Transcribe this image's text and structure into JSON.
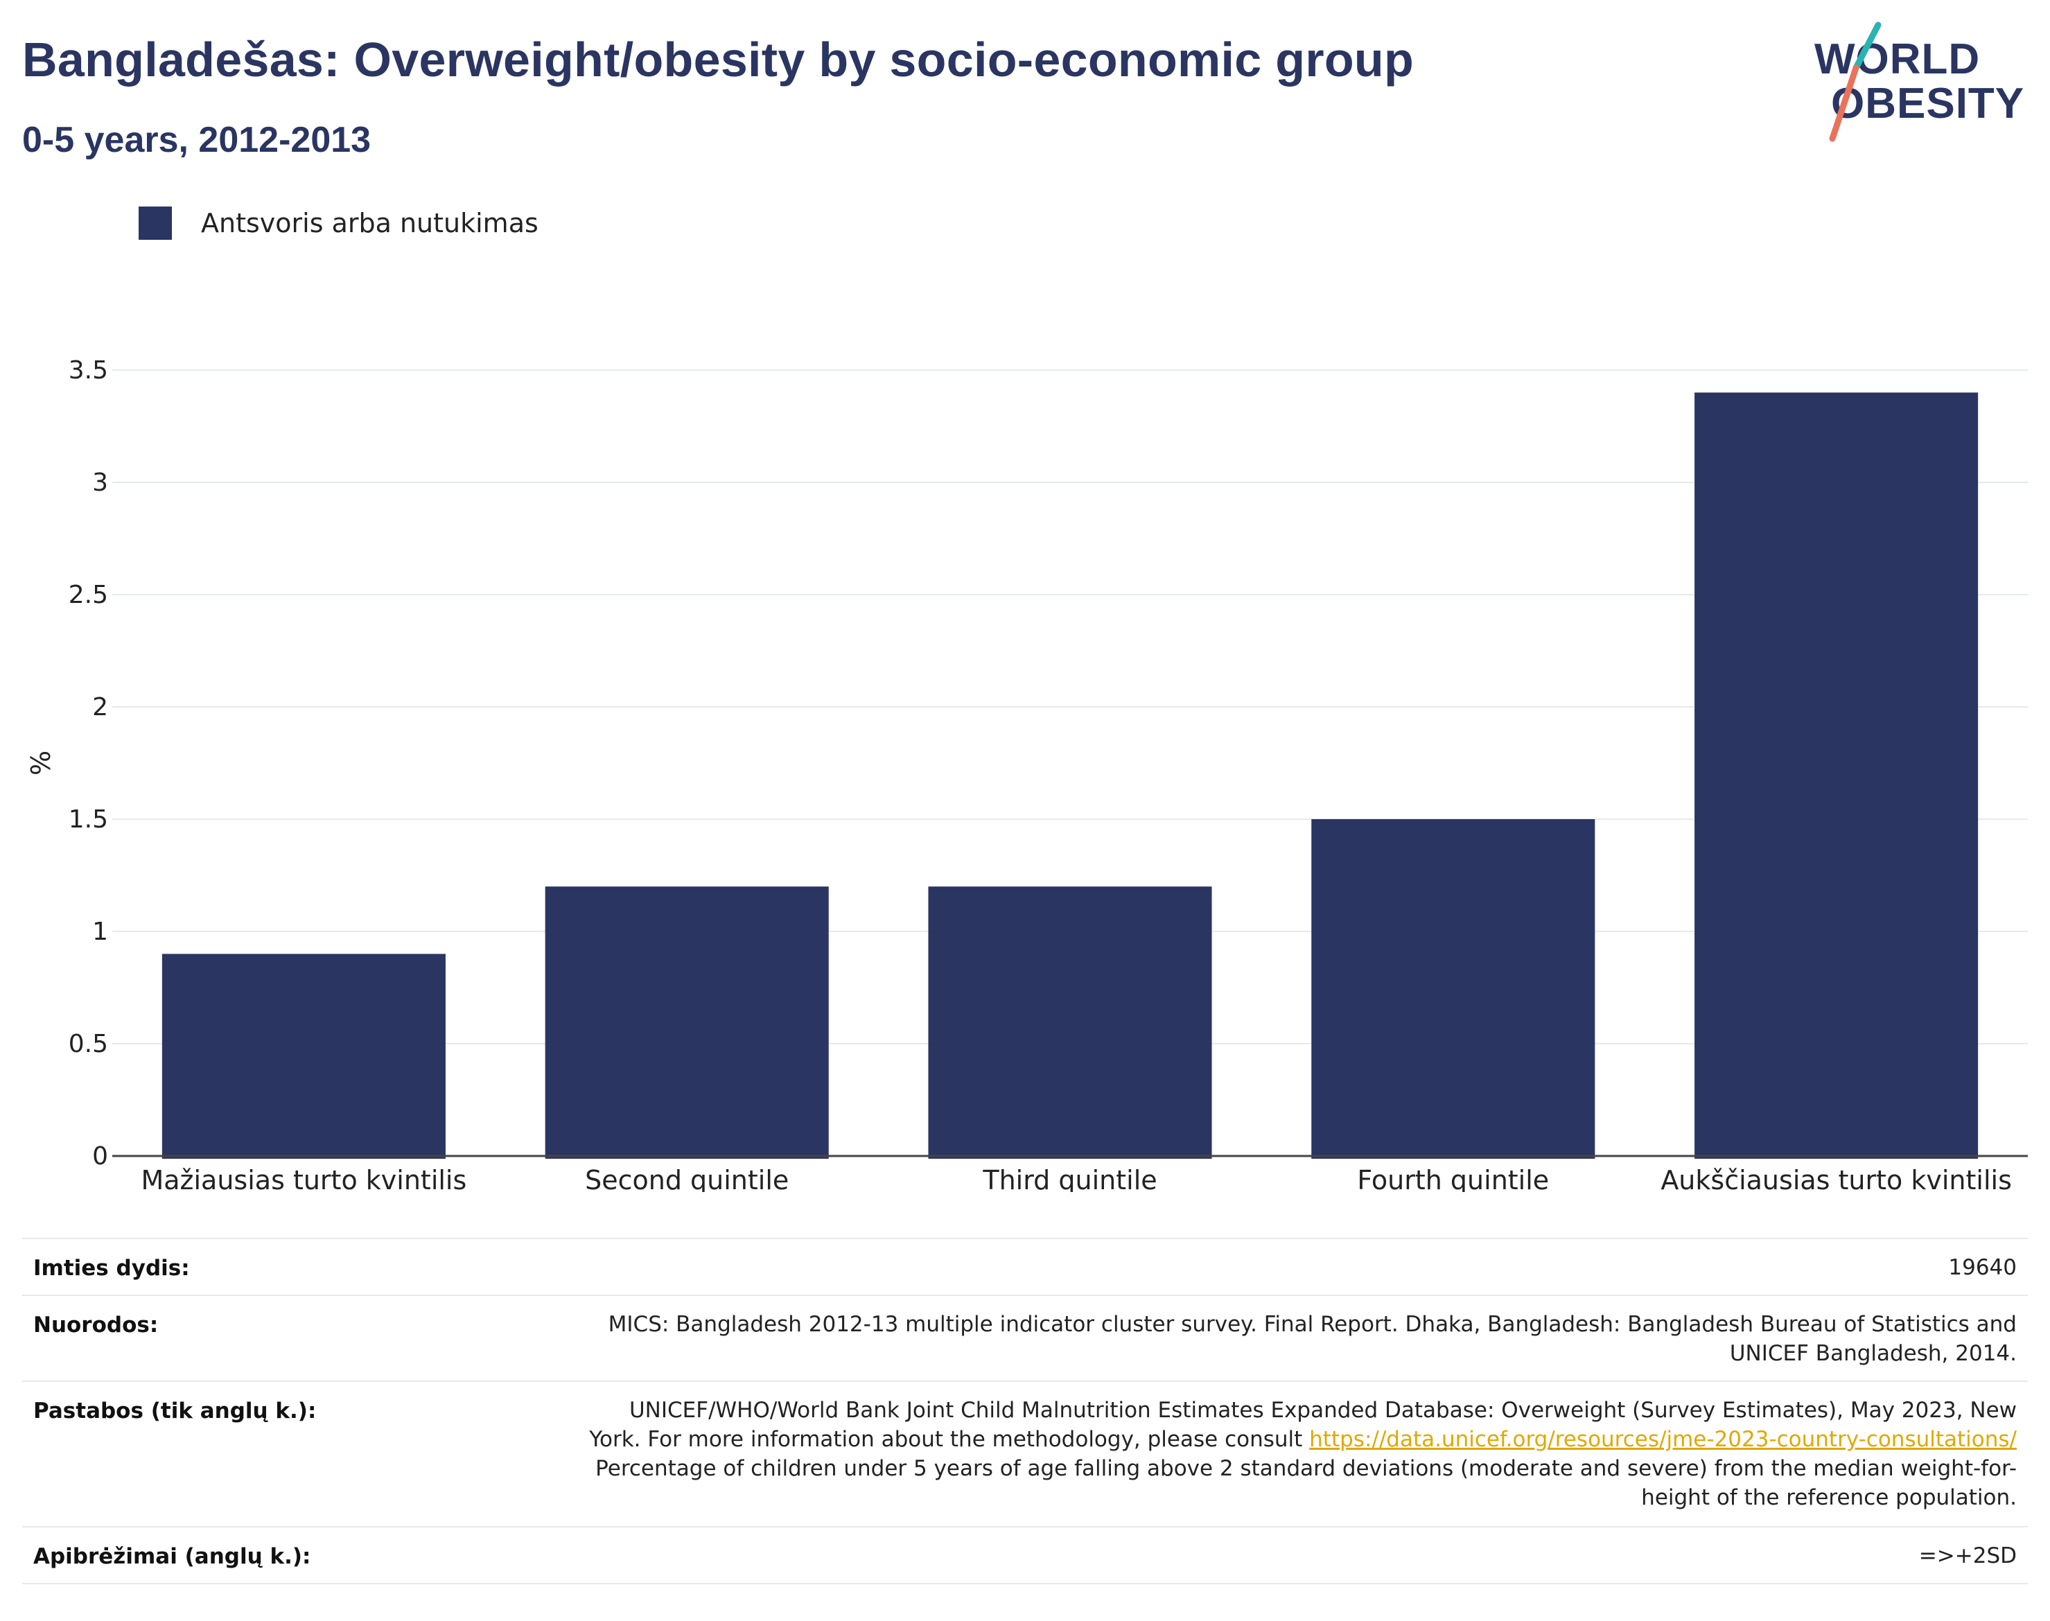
{
  "header": {
    "title": "Bangladešas: Overweight/obesity by socio-economic group",
    "subtitle": "0-5 years, 2012-2013"
  },
  "logo": {
    "line1": "WORLD",
    "line2": "OBESITY",
    "accent_colors": [
      "#2bb3b3",
      "#e8735a"
    ]
  },
  "legend": {
    "label": "Antsvoris arba nutukimas",
    "color": "#2a3562"
  },
  "chart_data": {
    "type": "bar",
    "categories": [
      "Mažiausias turto kvintilis",
      "Second quintile",
      "Third quintile",
      "Fourth quintile",
      "Aukščiausias turto kvintilis"
    ],
    "series": [
      {
        "name": "Antsvoris arba nutukimas",
        "values": [
          0.9,
          1.2,
          1.2,
          1.5,
          3.4
        ],
        "color": "#2a3562"
      }
    ],
    "ylabel": "%",
    "xlabel": "",
    "ylim": [
      0,
      3.5
    ],
    "yticks": [
      0,
      0.5,
      1,
      1.5,
      2,
      2.5,
      3,
      3.5
    ],
    "ytick_labels": [
      "0",
      "0.5",
      "1",
      "1.5",
      "2",
      "2.5",
      "3",
      "3.5"
    ],
    "grid": true
  },
  "meta": {
    "sample_key": "Imties dydis:",
    "sample_val": "19640",
    "refs_key": "Nuorodos:",
    "refs_val_1": "MICS: Bangladesh 2012-13 multiple indicator cluster survey. Final Report. Dhaka, Bangladesh: Bangladesh Bureau of Statistics and",
    "refs_val_2": "UNICEF Bangladesh, 2014.",
    "notes_key": "Pastabos (tik anglų k.):",
    "notes_val_1": "UNICEF/WHO/World Bank Joint Child Malnutrition Estimates Expanded Database: Overweight (Survey Estimates), May 2023, New",
    "notes_val_2a": "York. For more information about the methodology, please consult ",
    "notes_link": "https://data.unicef.org/resources/jme-2023-country-consultations/",
    "notes_val_3": "Percentage of children under 5 years of age falling above 2 standard deviations (moderate and severe) from the median weight-for-",
    "notes_val_4": "height of the reference population.",
    "defs_key": "Apibrėžimai (anglų k.):",
    "defs_val": "=>+2SD"
  }
}
